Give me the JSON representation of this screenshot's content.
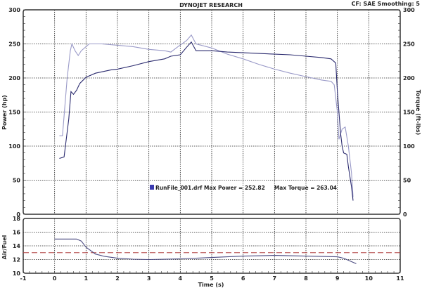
{
  "header": {
    "title": "DYNOJET RESEARCH",
    "settings": "CF: SAE  Smoothing: 5"
  },
  "legend": {
    "text": "RunFile_001.drf Max Power = 252.82     Max Torque = 263.04",
    "swatch_color": "#3a3ab0"
  },
  "chart_data": [
    {
      "type": "line",
      "xlabel": "Time (s)",
      "ylabel": "Power (hp)",
      "y2label": "Torque (ft-lbs)",
      "xlim": [
        -1,
        11
      ],
      "ylim": [
        0,
        300
      ],
      "y2lim": [
        0,
        300
      ],
      "xticks": [
        "-1",
        "0",
        "1",
        "2",
        "3",
        "4",
        "5",
        "6",
        "7",
        "8",
        "9",
        "10",
        "11"
      ],
      "yticks": [
        "0",
        "50",
        "100",
        "150",
        "200",
        "250",
        "300"
      ],
      "grid": true,
      "legend_position": "bottom-center",
      "series": [
        {
          "key": "power",
          "color": "#2a2a6e",
          "x": [
            0.15,
            0.3,
            0.45,
            0.52,
            0.6,
            0.7,
            0.8,
            1.0,
            1.3,
            1.8,
            2.0,
            2.5,
            3.0,
            3.5,
            3.7,
            4.0,
            4.2,
            4.35,
            4.5,
            5.0,
            5.5,
            6.0,
            6.5,
            7.0,
            7.5,
            8.0,
            8.5,
            8.8,
            8.95,
            9.0,
            9.05,
            9.1,
            9.15,
            9.2,
            9.3,
            9.35,
            9.45,
            9.5
          ],
          "y": [
            82,
            84,
            140,
            180,
            176,
            182,
            192,
            201,
            207,
            212,
            213,
            218,
            224,
            228,
            232,
            234,
            245,
            252.8,
            240,
            240,
            238,
            237,
            236,
            235,
            234,
            232,
            230,
            228,
            222,
            180,
            150,
            120,
            100,
            90,
            88,
            70,
            40,
            20
          ]
        },
        {
          "key": "torque",
          "color": "#9a9ac8",
          "x": [
            0.15,
            0.25,
            0.4,
            0.5,
            0.55,
            0.65,
            0.75,
            0.85,
            1.1,
            1.5,
            2.0,
            2.5,
            3.0,
            3.5,
            3.7,
            3.9,
            4.2,
            4.35,
            4.5,
            5.0,
            5.5,
            6.0,
            6.5,
            7.0,
            7.5,
            8.0,
            8.5,
            8.8,
            8.9,
            9.0,
            9.05,
            9.15,
            9.25,
            9.35,
            9.45,
            9.5
          ],
          "y": [
            115,
            115,
            200,
            240,
            250,
            240,
            233,
            240,
            250,
            250,
            248,
            246,
            242,
            240,
            238,
            245,
            255,
            263,
            250,
            244,
            235,
            228,
            220,
            213,
            207,
            202,
            197,
            195,
            190,
            150,
            110,
            125,
            128,
            100,
            60,
            25
          ]
        }
      ]
    },
    {
      "type": "line",
      "xlabel": "Time (s)",
      "ylabel": "Air/Fuel",
      "xlim": [
        -1,
        11
      ],
      "ylim": [
        10,
        18
      ],
      "yticks": [
        "10",
        "12",
        "14",
        "16",
        "18"
      ],
      "grid": true,
      "reference_line": {
        "y": 13,
        "color": "#b04040",
        "style": "dashed"
      },
      "series": [
        {
          "key": "afr",
          "color": "#4a4a80",
          "x": [
            0,
            0.7,
            0.85,
            1.0,
            1.3,
            1.6,
            2.0,
            2.5,
            3.0,
            4.0,
            5.0,
            6.0,
            7.0,
            8.0,
            9.0,
            9.2,
            9.6
          ],
          "y": [
            15.0,
            15.0,
            14.7,
            13.8,
            12.8,
            12.45,
            12.2,
            12.05,
            12.0,
            12.1,
            12.3,
            12.5,
            12.6,
            12.5,
            12.4,
            12.2,
            11.4
          ]
        }
      ]
    }
  ]
}
